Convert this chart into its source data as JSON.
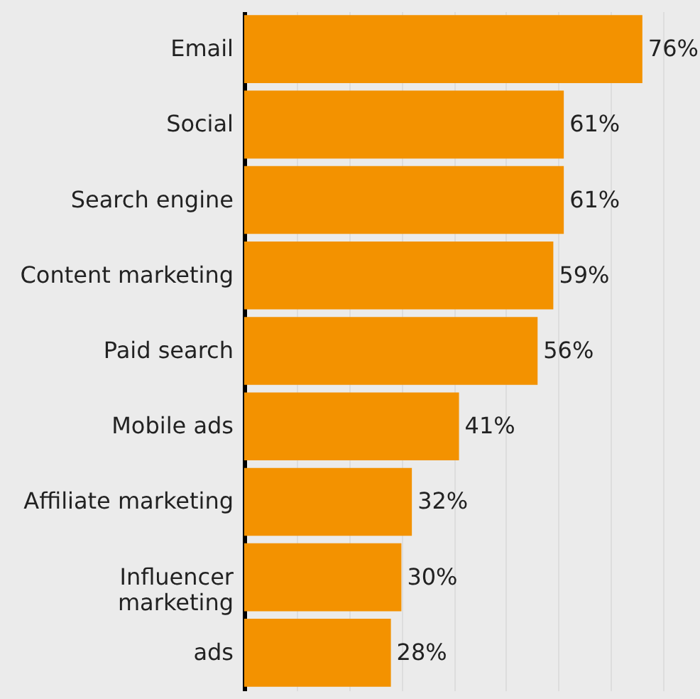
{
  "chart_data": {
    "type": "bar",
    "orientation": "horizontal",
    "categories": [
      "Email",
      "Social",
      "Search engine",
      "Content marketing",
      "Paid search",
      "Mobile ads",
      "Affiliate marketing",
      "Influencer marketing",
      "ads"
    ],
    "values": [
      76,
      61,
      61,
      59,
      56,
      41,
      32,
      30,
      28
    ],
    "color": "#f39200",
    "value_labels": [
      "76%",
      "61%",
      "61%",
      "59%",
      "56%",
      "41%",
      "32%",
      "30%",
      "28%"
    ],
    "xlim": [
      0,
      87
    ],
    "xticks": [
      {
        "value": 10,
        "label": null
      },
      {
        "value": 20,
        "label": null
      },
      {
        "value": 30,
        "label": null
      },
      {
        "value": 40,
        "label": null
      },
      {
        "value": 50,
        "label": null
      },
      {
        "value": 60,
        "label": null
      },
      {
        "value": 70,
        "label": null
      },
      {
        "value": 80,
        "label": null
      }
    ],
    "grid": "x",
    "tick_labels": "y"
  }
}
